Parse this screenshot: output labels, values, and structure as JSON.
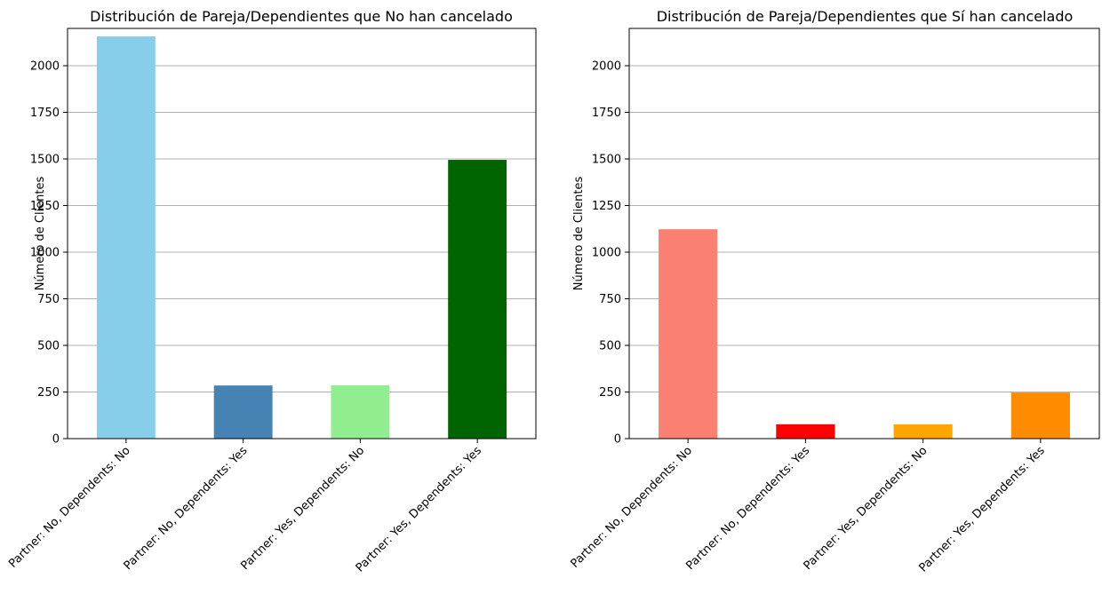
{
  "chart_data": [
    {
      "type": "bar",
      "title": "Distribución de Pareja/Dependientes que No han cancelado",
      "xlabel": "",
      "ylabel": "Número de Clientes",
      "categories": [
        "Partner: No, Dependents: No",
        "Partner: No, Dependents: Yes",
        "Partner: Yes, Dependents: No",
        "Partner: Yes, Dependents: Yes"
      ],
      "values": [
        2157,
        285,
        286,
        1495
      ],
      "colors": [
        "#87ceeb",
        "#4682b4",
        "#90ee90",
        "#006400"
      ],
      "ylim": [
        0,
        2200
      ],
      "yticks": [
        0,
        250,
        500,
        750,
        1000,
        1250,
        1500,
        1750,
        2000
      ],
      "grid": "y"
    },
    {
      "type": "bar",
      "title": "Distribución de Pareja/Dependientes que Sí han cancelado",
      "xlabel": "",
      "ylabel": "Número de Clientes",
      "categories": [
        "Partner: No, Dependents: No",
        "Partner: No, Dependents: Yes",
        "Partner: Yes, Dependents: No",
        "Partner: Yes, Dependents: Yes"
      ],
      "values": [
        1123,
        77,
        77,
        247
      ],
      "colors": [
        "#fa8072",
        "#ff0000",
        "#ffa500",
        "#ff8c00"
      ],
      "ylim": [
        0,
        2200
      ],
      "yticks": [
        0,
        250,
        500,
        750,
        1000,
        1250,
        1500,
        1750,
        2000
      ],
      "grid": "y"
    }
  ]
}
